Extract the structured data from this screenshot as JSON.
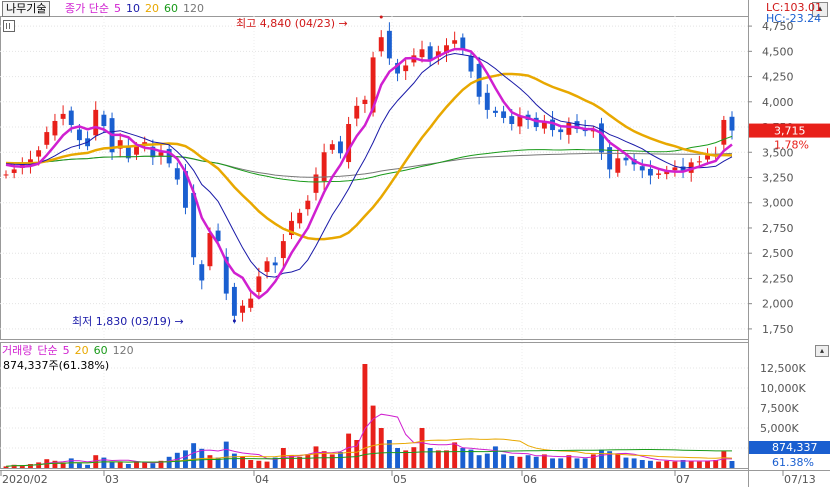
{
  "header": {
    "stock_name": "나무기술",
    "legend_label": "종가 단순",
    "ma_periods": [
      {
        "period": "5",
        "color": "#d020d0"
      },
      {
        "period": "10",
        "color": "#1a1aa8"
      },
      {
        "period": "20",
        "color": "#e8a800"
      },
      {
        "period": "60",
        "color": "#1a9a1a"
      },
      {
        "period": "120",
        "color": "#777777"
      }
    ],
    "lc_label": "LC:103.01",
    "hc_label": "HC:-23.24"
  },
  "annotations": {
    "high_label": "최고 4,840 (04/23)",
    "low_label": "최저 1,830 (03/19)"
  },
  "price_panel": {
    "y_ticks": [
      "4,750",
      "4,500",
      "4,250",
      "4,000",
      "3,750",
      "3,500",
      "3,250",
      "3,000",
      "2,750",
      "2,500",
      "2,250",
      "2,000",
      "1,750"
    ],
    "current_price": "3,715",
    "change_pct": "1.78%"
  },
  "volume_panel": {
    "legend_label": "거래량",
    "legend_ma": "단순",
    "ma_periods": [
      {
        "period": "5",
        "color": "#d020d0"
      },
      {
        "period": "20",
        "color": "#e8a800"
      },
      {
        "period": "60",
        "color": "#1a9a1a"
      },
      {
        "period": "120",
        "color": "#777777"
      }
    ],
    "info": "874,337주(61.38%)",
    "y_ticks": [
      "12,500K",
      "10,000K",
      "7,500K",
      "5,000K",
      "2,500K"
    ],
    "current_volume": "874,337",
    "current_pct": "61.38%"
  },
  "x_axis": {
    "labels": [
      "2020/02",
      "03",
      "04",
      "05",
      "06",
      "07",
      "07/13"
    ]
  },
  "colors": {
    "up": "#e8201a",
    "down": "#1a5fd0",
    "ma5": "#d020d0",
    "ma10": "#1a1aa8",
    "ma20": "#e8a800",
    "ma60": "#1a9a1a",
    "ma120": "#777777"
  },
  "chart_data": {
    "type": "candlestick",
    "title": "나무기술",
    "x_labels": [
      "2020/02",
      "03",
      "04",
      "05",
      "06",
      "07",
      "07/13"
    ],
    "ylim": [
      1650,
      4850
    ],
    "high": {
      "value": 4840,
      "date": "04/23"
    },
    "low": {
      "value": 1830,
      "date": "03/19"
    },
    "close_series": [
      3280,
      3330,
      3380,
      3430,
      3520,
      3700,
      3810,
      3880,
      3770,
      3620,
      3560,
      3920,
      3760,
      3500,
      3620,
      3440,
      3560,
      3600,
      3450,
      3500,
      3390,
      3230,
      2950,
      2460,
      2230,
      2700,
      2620,
      2100,
      1880,
      1980,
      2050,
      2270,
      2420,
      2380,
      2620,
      2820,
      2900,
      3020,
      3280,
      3500,
      3580,
      3490,
      3780,
      3960,
      4020,
      4440,
      4640,
      4430,
      4280,
      4360,
      4460,
      4520,
      4420,
      4500,
      4560,
      4610,
      4520,
      4300,
      4050,
      3920,
      3890,
      3840,
      3780,
      3860,
      3820,
      3750,
      3800,
      3720,
      3700,
      3790,
      3730,
      3710,
      3720,
      3500,
      3330,
      3440,
      3420,
      3380,
      3320,
      3270,
      3290,
      3310,
      3350,
      3320,
      3400,
      3410,
      3470,
      3470,
      3820,
      3715
    ],
    "volume_series": [
      0.2,
      0.4,
      0.3,
      0.5,
      0.7,
      1.1,
      0.9,
      0.7,
      1.2,
      0.6,
      0.4,
      1.6,
      1.3,
      0.8,
      0.7,
      0.5,
      0.8,
      0.7,
      0.6,
      0.9,
      1.4,
      1.9,
      2.2,
      3.1,
      2.4,
      1.6,
      1.3,
      3.3,
      1.8,
      1.4,
      1.0,
      0.9,
      0.8,
      1.3,
      2.5,
      1.6,
      1.4,
      1.7,
      2.7,
      2.1,
      1.7,
      2.0,
      4.3,
      3.5,
      13.0,
      7.8,
      5.0,
      3.5,
      2.5,
      2.2,
      2.6,
      5.0,
      2.5,
      2.2,
      2.2,
      3.2,
      2.5,
      2.3,
      1.6,
      1.8,
      2.7,
      1.7,
      1.5,
      1.4,
      1.6,
      1.4,
      1.7,
      1.2,
      1.2,
      1.6,
      1.2,
      1.2,
      1.7,
      2.3,
      2.1,
      1.7,
      1.3,
      1.2,
      1.0,
      0.9,
      0.8,
      0.9,
      0.8,
      1.0,
      0.9,
      0.8,
      0.9,
      1.0,
      2.1,
      0.874
    ],
    "volume_ylim": [
      0,
      14000
    ],
    "volume_unit": "K"
  }
}
